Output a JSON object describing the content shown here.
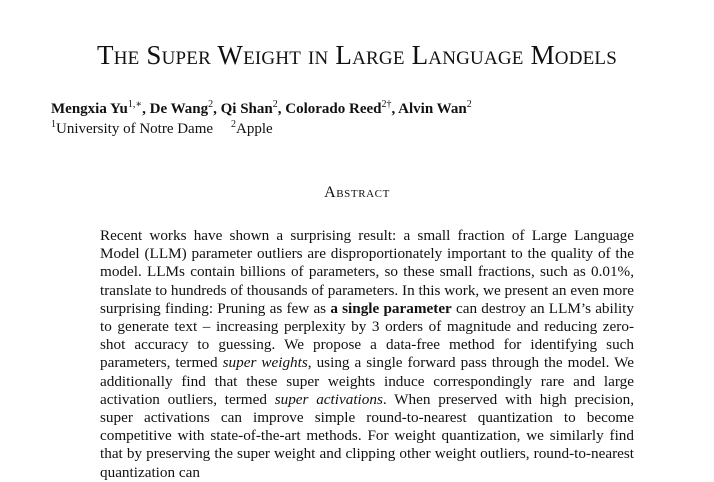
{
  "paper": {
    "title": "The Super Weight in Large Language Models",
    "authors": [
      {
        "name": "Mengxia Yu",
        "mark": "1,∗"
      },
      {
        "name": "De Wang",
        "mark": "2"
      },
      {
        "name": "Qi Shan",
        "mark": "2"
      },
      {
        "name": "Colorado Reed",
        "mark": "2†"
      },
      {
        "name": "Alvin Wan",
        "mark": "2"
      }
    ],
    "affiliations": [
      {
        "mark": "1",
        "name": "University of Notre Dame"
      },
      {
        "mark": "2",
        "name": "Apple"
      }
    ],
    "abstract_heading": "Abstract",
    "abstract": {
      "s1": "Recent works have shown a surprising result: a small fraction of Large Language Model (LLM) parameter outliers are disproportionately important to the quality of the model. LLMs contain billions of parameters, so these small fractions, such as 0.01%, translate to hundreds of thousands of parameters. In this work, we present an even more surprising finding: Pruning as few as ",
      "bold1": "a single parameter",
      "s2": " can destroy an LLM’s ability to generate text – increasing perplexity by 3 orders of magnitude and reducing zero-shot accuracy to guessing. We propose a data-free method for identifying such parameters, termed ",
      "ital1": "super weights",
      "s3": ", using a single forward pass through the model. We additionally find that these super weights induce correspondingly rare and large activation outliers, termed ",
      "ital2": "super activations",
      "s4": ". When preserved with high precision, super activations can improve simple round-to-nearest quantization to become competitive with state-of-the-art methods. For weight quantization, we similarly find that by preserving the super weight and clipping other weight outliers, round-to-nearest quantization can"
    }
  }
}
